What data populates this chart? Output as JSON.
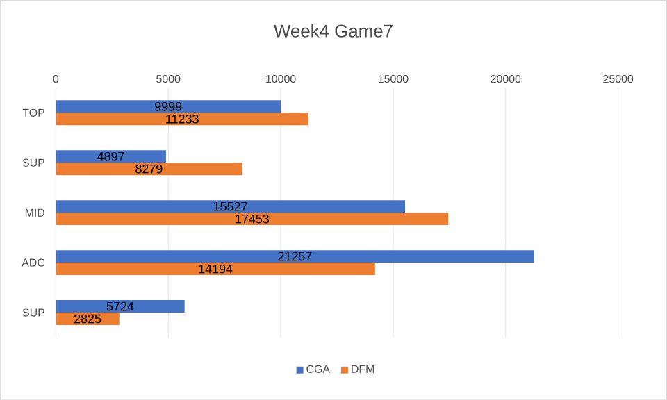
{
  "chart_data": {
    "type": "bar",
    "orientation": "horizontal",
    "title": "Week4 Game7",
    "categories": [
      "TOP",
      "SUP",
      "MID",
      "ADC",
      "SUP"
    ],
    "series": [
      {
        "name": "CGA",
        "color": "#4472c4",
        "values": [
          9999,
          4897,
          15527,
          21257,
          5724
        ]
      },
      {
        "name": "DFM",
        "color": "#ed7d31",
        "values": [
          11233,
          8279,
          17453,
          14194,
          2825
        ]
      }
    ],
    "xlim": [
      0,
      25000
    ],
    "xticks": [
      0,
      5000,
      10000,
      15000,
      20000,
      25000
    ],
    "grid": "x",
    "legend": "bottom",
    "data_labels": true
  }
}
